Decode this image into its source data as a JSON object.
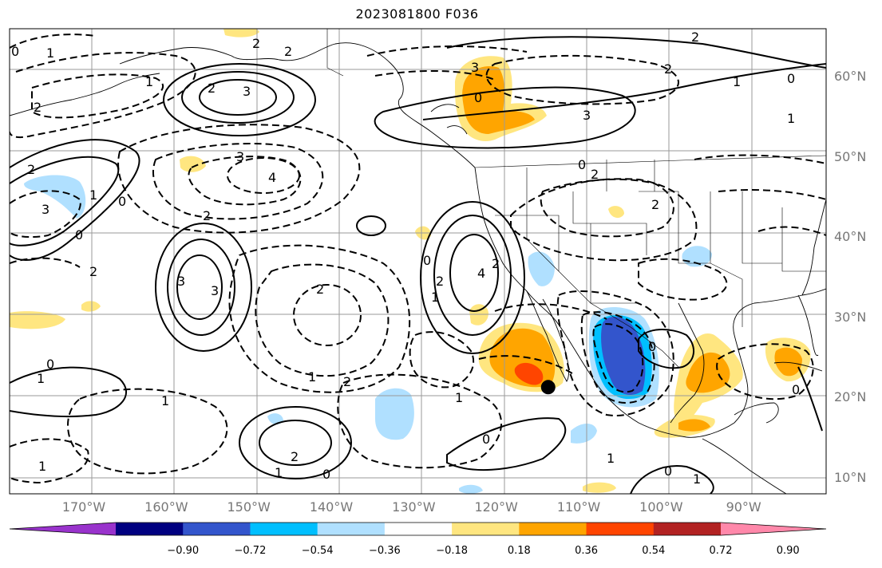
{
  "title": "2023081800 F036",
  "lat_labels": [
    {
      "text": "60°N",
      "lat": 60
    },
    {
      "text": "50°N",
      "lat": 50
    },
    {
      "text": "40°N",
      "lat": 40
    },
    {
      "text": "30°N",
      "lat": 30
    },
    {
      "text": "20°N",
      "lat": 20
    },
    {
      "text": "10°N",
      "lat": 10
    }
  ],
  "lon_labels": [
    {
      "text": "170°W",
      "lon": -170
    },
    {
      "text": "160°W",
      "lon": -160
    },
    {
      "text": "150°W",
      "lon": -150
    },
    {
      "text": "140°W",
      "lon": -140
    },
    {
      "text": "130°W",
      "lon": -130
    },
    {
      "text": "120°W",
      "lon": -120
    },
    {
      "text": "110°W",
      "lon": -110
    },
    {
      "text": "100°W",
      "lon": -100
    },
    {
      "text": "90°W",
      "lon": -90
    }
  ],
  "map_extent": {
    "lon_min": -179,
    "lon_max": -80,
    "lat_min": 8,
    "lat_max": 66
  },
  "colorbar": {
    "colors": [
      "#9933cc",
      "#000080",
      "#3355cc",
      "#00bfff",
      "#b0e0ff",
      "#ffffff",
      "#ffe680",
      "#ffa500",
      "#ff4500",
      "#b22222",
      "#ff88aa"
    ],
    "tick_labels": [
      "−0.90",
      "−0.72",
      "−0.54",
      "−0.36",
      "−0.18",
      "0.18",
      "0.36",
      "0.54",
      "0.72",
      "0.90"
    ]
  },
  "marker": {
    "lon": -113.7,
    "lat": 21.3,
    "color": "#000000"
  },
  "contour_labels": [
    "0",
    "1",
    "1",
    "2",
    "3",
    "2",
    "2",
    "3",
    "2",
    "3",
    "2",
    "0",
    "2",
    "3",
    "4",
    "0",
    "2",
    "1",
    "0",
    "2",
    "3",
    "2",
    "3",
    "3",
    "4",
    "2",
    "2",
    "0",
    "1",
    "2",
    "2",
    "1",
    "2",
    "1",
    "0",
    "1",
    "1",
    "1",
    "0",
    "1",
    "2",
    "1",
    "0",
    "2",
    "0",
    "0",
    "1",
    "1",
    "0",
    "0",
    "1",
    "0"
  ]
}
